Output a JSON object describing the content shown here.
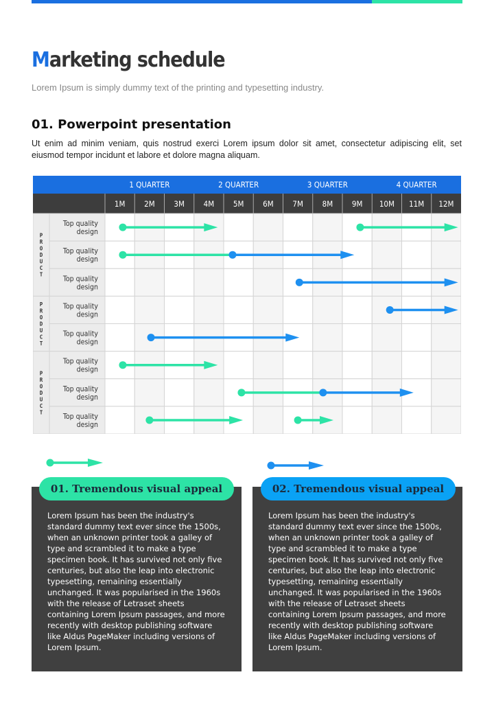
{
  "title_first": "M",
  "title_rest": "arketing schedule",
  "subtitle": "Lorem Ipsum is simply dummy text of the printing  and typesetting industry.",
  "section_title": "01. Powerpoint presentation",
  "section_text": "Ut enim ad minim veniam, quis nostrud exerci  Lorem ipsum dolor sit amet, consectetur adipiscing elit, set eiusmod tempor incidunt et labore et dolore magna aliquam.",
  "colors": {
    "blue": "#1a6fe0",
    "green": "#2de3a6",
    "arrow_blue": "#1e90f0",
    "dark": "#3d3d3d"
  },
  "schedule": {
    "quarters": [
      "1 QUARTER",
      "2 QUARTER",
      "3 QUARTER",
      "4 QUARTER"
    ],
    "months": [
      "1M",
      "2M",
      "3M",
      "4M",
      "5M",
      "6M",
      "7M",
      "8M",
      "9M",
      "10M",
      "11M",
      "12M"
    ],
    "groups": [
      {
        "label": "PRODUCT",
        "rows": 3
      },
      {
        "label": "PRODUCT",
        "rows": 2
      },
      {
        "label": "PRODUCT",
        "rows": 3
      }
    ],
    "rows": [
      {
        "label": "Top quality design",
        "bars": [
          {
            "color": "green",
            "start": 0.6,
            "end": 3.8
          },
          {
            "color": "green",
            "start": 8.6,
            "end": 11.9
          }
        ]
      },
      {
        "label": "Top quality design",
        "bars": [
          {
            "color": "green",
            "start": 0.6,
            "end": 4.3,
            "noHead": true
          },
          {
            "color": "blue",
            "start": 4.3,
            "end": 8.4
          }
        ]
      },
      {
        "label": "Top quality design",
        "bars": [
          {
            "color": "blue",
            "start": 6.55,
            "end": 11.9
          }
        ]
      },
      {
        "label": "Top quality design",
        "bars": [
          {
            "color": "blue",
            "start": 9.6,
            "end": 11.9
          }
        ]
      },
      {
        "label": "Top quality design",
        "bars": [
          {
            "color": "blue",
            "start": 1.55,
            "end": 6.55
          }
        ]
      },
      {
        "label": "Top quality design",
        "bars": [
          {
            "color": "green",
            "start": 0.6,
            "end": 3.8
          }
        ]
      },
      {
        "label": "Top quality design",
        "bars": [
          {
            "color": "green",
            "start": 4.6,
            "end": 7.35,
            "noHead": true
          },
          {
            "color": "blue",
            "start": 7.35,
            "end": 10.4
          }
        ]
      },
      {
        "label": "Top quality design",
        "bars": [
          {
            "color": "green",
            "start": 1.5,
            "end": 4.65
          },
          {
            "color": "green",
            "start": 6.5,
            "end": 7.7
          }
        ]
      }
    ]
  },
  "cards": [
    {
      "title": "01. Tremendous visual appeal",
      "text": "Lorem Ipsum has been the industry's standard dummy text ever since the 1500s, when an unknown printer took a galley of type and scrambled it to make a type specimen book. It has survived not only five centuries, but also the leap into electronic typesetting, remaining essentially unchanged. It was popularised in the 1960s with the release of Letraset sheets containing Lorem Ipsum passages, and more recently with desktop publishing software like Aldus PageMaker including versions of Lorem Ipsum."
    },
    {
      "title": "02. Tremendous visual appeal",
      "text": "Lorem Ipsum has been the industry's standard dummy text ever since the 1500s, when an unknown printer took a galley of type and scrambled it to make a type specimen book. It has survived not only five centuries, but also the leap into electronic typesetting, remaining essentially unchanged. It was popularised in the 1960s with the release of Letraset sheets containing Lorem Ipsum passages, and more recently with desktop publishing software like Aldus PageMaker including versions of Lorem Ipsum."
    }
  ]
}
